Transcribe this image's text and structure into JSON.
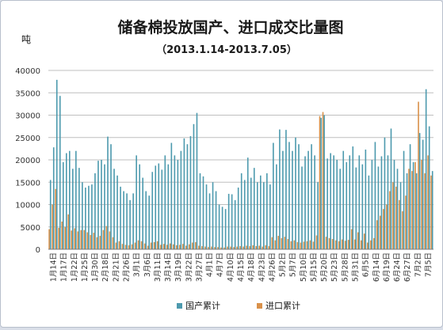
{
  "chart_data": {
    "type": "bar",
    "title": "储备棉投放国产、进口成交比量图",
    "subtitle": "（2013.1.14-2013.7.05）",
    "ylabel": "吨",
    "ylim": [
      0,
      40000
    ],
    "yticks": [
      0,
      5000,
      10000,
      15000,
      20000,
      25000,
      30000,
      35000,
      40000
    ],
    "grid": true,
    "legend_position": "bottom",
    "colors": {
      "domestic": "#4d9aae",
      "imported": "#d9914a"
    },
    "tick_labels": [
      "1月14日",
      "1月17日",
      "1月22日",
      "1月25日",
      "1月30日",
      "2月18日",
      "2月21日",
      "2月26日",
      "3月1日",
      "3月6日",
      "3月11日",
      "3月14日",
      "3月19日",
      "3月22日",
      "3月27日",
      "4月1日",
      "4月7日",
      "4月10日",
      "4月15日",
      "4月18日",
      "4月23日",
      "4月26日",
      "5月2日",
      "5月7日",
      "5月10日",
      "5月15日",
      "5月20日",
      "5月23日",
      "5月28日",
      "5月31日",
      "6月5日",
      "6月14日",
      "6月19日",
      "6月24日",
      "6月27日",
      "7月2日",
      "7月5日"
    ],
    "series": [
      {
        "name": "国产累计",
        "values": [
          15500,
          22800,
          37900,
          34300,
          19500,
          21500,
          22000,
          18000,
          22000,
          18200,
          15000,
          13800,
          14200,
          14500,
          17000,
          19800,
          20000,
          19000,
          25200,
          23500,
          18000,
          16500,
          14000,
          13000,
          12500,
          11000,
          12500,
          21000,
          19000,
          16000,
          13000,
          12000,
          17300,
          18700,
          19200,
          17800,
          21000,
          19000,
          23800,
          21000,
          20000,
          22000,
          24800,
          23500,
          25300,
          28000,
          30500,
          17000,
          16300,
          14500,
          12500,
          15000,
          13000,
          10000,
          9500,
          9000,
          12400,
          12300,
          11000,
          13800,
          17000,
          15500,
          20500,
          16000,
          18200,
          15000,
          16500,
          15000,
          17000,
          14500,
          23800,
          19000,
          26800,
          22000,
          26700,
          24000,
          22000,
          25000,
          23500,
          18500,
          20800,
          22000,
          23500,
          21000,
          15000,
          29400,
          30000,
          20300,
          21500,
          21000,
          20000,
          18000,
          22000,
          19500,
          21000,
          23000,
          18300,
          21000,
          19000,
          22300,
          16500,
          20000,
          24000,
          18500,
          20800,
          25000,
          21000,
          27000,
          20000,
          18000,
          15000,
          22000,
          17000,
          23500,
          19500,
          17000,
          26000,
          24500,
          35800,
          27500,
          17500
        ],
        "raw": "x10 ticks approx"
      },
      {
        "name": "进口累计",
        "values": [
          4500,
          10000,
          13500,
          4800,
          6200,
          5000,
          7800,
          4200,
          4700,
          4000,
          4300,
          4300,
          3800,
          3200,
          3700,
          2700,
          3000,
          4300,
          5200,
          4000,
          2700,
          1500,
          1800,
          1200,
          1000,
          900,
          1100,
          1500,
          2000,
          1800,
          1300,
          800,
          1500,
          1600,
          1800,
          1000,
          1200,
          1000,
          1300,
          1100,
          900,
          1000,
          1200,
          800,
          1100,
          1500,
          1600,
          800,
          700,
          600,
          500,
          600,
          500,
          500,
          400,
          400,
          600,
          600,
          500,
          600,
          700,
          600,
          800,
          700,
          900,
          700,
          800,
          600,
          900,
          700,
          2700,
          2000,
          3000,
          2500,
          2800,
          2300,
          1800,
          2000,
          1600,
          1500,
          1700,
          1800,
          2000,
          1700,
          3100,
          29800,
          30700,
          2800,
          2500,
          2300,
          2000,
          1800,
          2200,
          1900,
          2100,
          4500,
          2200,
          3800,
          2000,
          3500,
          1500,
          2000,
          2500,
          6500,
          7500,
          9000,
          10000,
          13000,
          15000,
          14000,
          11000,
          8500,
          12000,
          18000,
          17500,
          19500,
          33000,
          20000,
          17000,
          21000,
          16500
        ]
      }
    ]
  }
}
